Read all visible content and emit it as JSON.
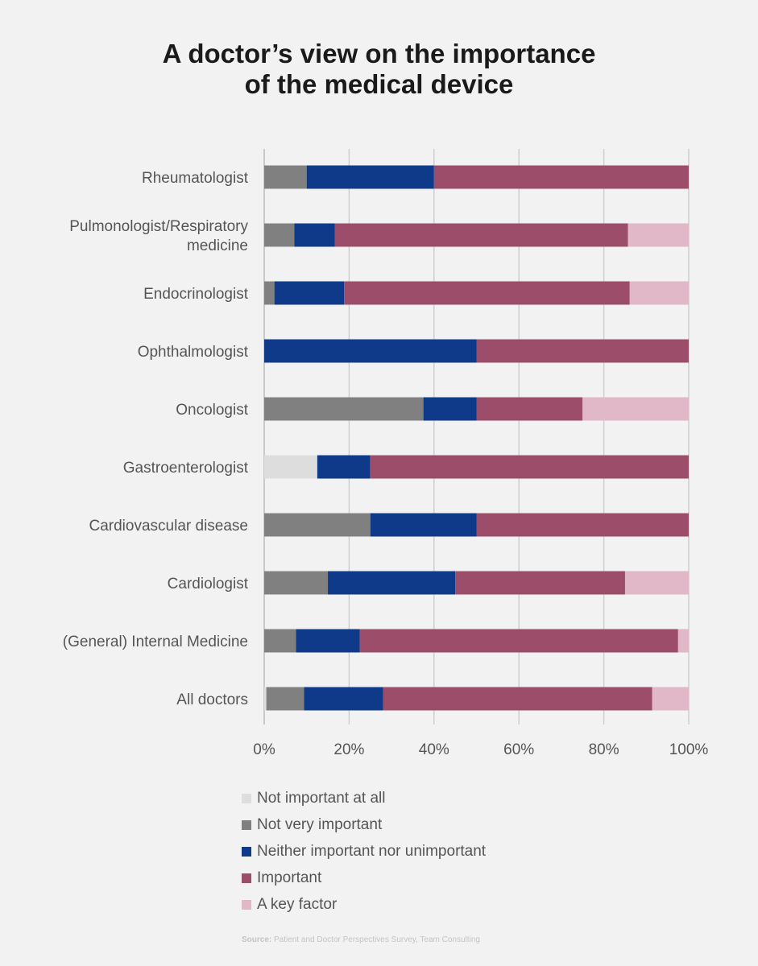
{
  "title_line1": "A doctor’s view on the importance",
  "title_line2": "of the medical device",
  "chart_data": {
    "type": "bar",
    "orientation": "horizontal",
    "stacked": "percent",
    "categories": [
      "Rheumatologist",
      "Pulmonologist/Respiratory medicine",
      "Endocrinologist",
      "Ophthalmologist",
      "Oncologist",
      "Gastroenterologist",
      "Cardiovascular disease",
      "Cardiologist",
      "(General) Internal Medicine",
      "All doctors"
    ],
    "category_lines": [
      [
        "Rheumatologist"
      ],
      [
        "Pulmonologist/Respiratory",
        "medicine"
      ],
      [
        "Endocrinologist"
      ],
      [
        "Ophthalmologist"
      ],
      [
        "Oncologist"
      ],
      [
        "Gastroenterologist"
      ],
      [
        "Cardiovascular disease"
      ],
      [
        "Cardiologist"
      ],
      [
        "(General) Internal Medicine"
      ],
      [
        "All doctors"
      ]
    ],
    "series": [
      {
        "name": "Not important at all",
        "color": "#dddddd",
        "values": [
          0,
          0,
          0,
          0,
          0,
          12.5,
          0,
          0,
          0,
          0.5
        ]
      },
      {
        "name": "Not very important",
        "color": "#808080",
        "values": [
          10,
          7.1,
          2.4,
          0,
          37.5,
          0,
          25,
          15,
          7.5,
          8.9
        ]
      },
      {
        "name": "Neither important nor unimportant",
        "color": "#0f3a8a",
        "values": [
          30,
          9.5,
          16.4,
          50,
          12.5,
          12.5,
          25,
          30,
          15,
          18.6
        ]
      },
      {
        "name": "Important",
        "color": "#9b4d6a",
        "values": [
          60,
          69.1,
          67.3,
          50,
          25,
          75,
          50,
          40,
          75,
          63.4
        ]
      },
      {
        "name": "A key factor",
        "color": "#e0b8c8",
        "values": [
          0,
          14.3,
          13.9,
          0,
          25,
          0,
          0,
          15,
          2.5,
          8.6
        ]
      }
    ],
    "xticks": [
      "0%",
      "20%",
      "40%",
      "60%",
      "80%",
      "100%"
    ],
    "xlim": [
      0,
      100
    ],
    "grid": true,
    "legend_position": "bottom"
  },
  "source_label": "Source:",
  "source_text": "Patient and Doctor Perspectives Survey, Team Consulting"
}
